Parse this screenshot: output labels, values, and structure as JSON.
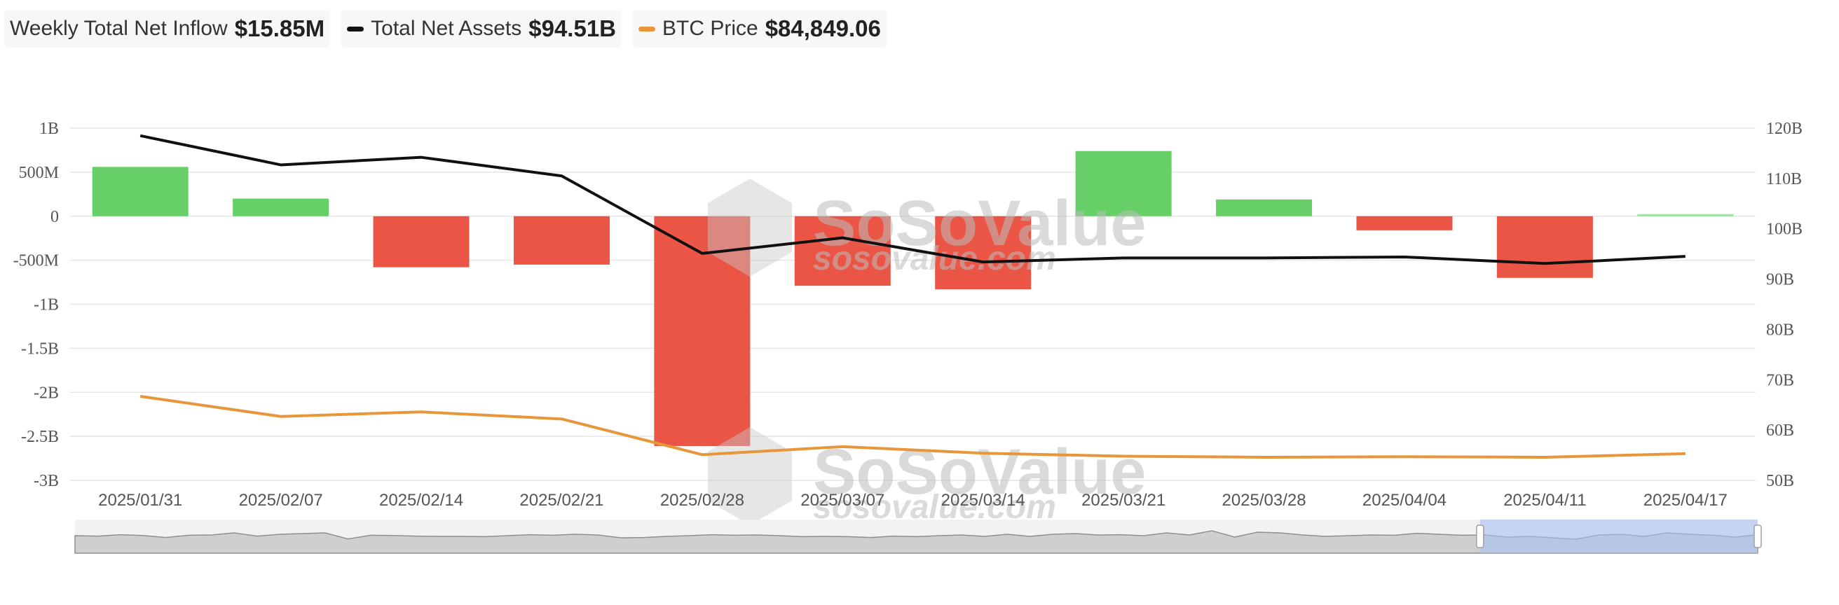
{
  "legend": {
    "inflow": {
      "label": "Weekly Total Net Inflow",
      "value": "$15.85M"
    },
    "assets": {
      "label": "Total Net Assets",
      "value": "$94.51B",
      "color": "#111111"
    },
    "btc": {
      "label": "BTC Price",
      "value": "$84,849.06",
      "color": "#e8963a"
    }
  },
  "watermark": {
    "brand": "SoSoValue",
    "url": "sosovalue.com"
  },
  "colors": {
    "positive": "#67cf68",
    "negative": "#eb5546",
    "assets_line": "#111111",
    "btc_line": "#e8963a",
    "grid": "#e6e6e6"
  },
  "chart_data": {
    "type": "bar",
    "categories": [
      "2025/01/31",
      "2025/02/07",
      "2025/02/14",
      "2025/02/21",
      "2025/02/28",
      "2025/03/07",
      "2025/03/14",
      "2025/03/21",
      "2025/03/28",
      "2025/04/04",
      "2025/04/11",
      "2025/04/17"
    ],
    "left_axis": {
      "ylim": [
        -3000000000,
        1000000000
      ],
      "ticks": [
        1000000000,
        500000000,
        0,
        -500000000,
        -1000000000,
        -1500000000,
        -2000000000,
        -2500000000,
        -3000000000
      ],
      "tick_labels": [
        "1B",
        "500M",
        "0",
        "-500M",
        "-1B",
        "-1.5B",
        "-2B",
        "-2.5B",
        "-3B"
      ]
    },
    "right_axis": {
      "ylim": [
        50000000000,
        120000000000
      ],
      "ticks": [
        120000000000,
        110000000000,
        100000000000,
        90000000000,
        80000000000,
        70000000000,
        60000000000,
        50000000000
      ],
      "tick_labels": [
        "120B",
        "110B",
        "100B",
        "90B",
        "80B",
        "70B",
        "60B",
        "50B"
      ]
    },
    "series": [
      {
        "name": "Weekly Total Net Inflow",
        "type": "bar",
        "axis": "left",
        "values": [
          560000000,
          200000000,
          -580000000,
          -550000000,
          -2610000000,
          -790000000,
          -830000000,
          740000000,
          190000000,
          -160000000,
          -700000000,
          15850000.0
        ]
      },
      {
        "name": "Total Net Assets",
        "type": "line",
        "axis": "right",
        "values": [
          118500000000,
          112700000000,
          114200000000,
          110500000000,
          95100000000,
          98200000000,
          93400000000,
          94200000000,
          94200000000,
          94400000000,
          93100000000,
          94510000000
        ]
      },
      {
        "name": "BTC Price",
        "type": "line",
        "axis": "right",
        "values": [
          66700000000,
          62700000000,
          63600000000,
          62200000000,
          55100000000,
          56700000000,
          55400000000,
          54800000000,
          54600000000,
          54700000000,
          54600000000,
          55300000000
        ]
      }
    ],
    "overview_series": [
      0.35,
      0.32,
      0.42,
      0.36,
      0.22,
      0.38,
      0.4,
      0.55,
      0.32,
      0.45,
      0.5,
      0.55,
      0.12,
      0.38,
      0.36,
      0.32,
      0.3,
      0.3,
      0.28,
      0.35,
      0.42,
      0.38,
      0.45,
      0.4,
      0.2,
      0.22,
      0.3,
      0.35,
      0.42,
      0.38,
      0.4,
      0.35,
      0.28,
      0.3,
      0.28,
      0.22,
      0.32,
      0.28,
      0.35,
      0.4,
      0.3,
      0.45,
      0.3,
      0.45,
      0.5,
      0.4,
      0.42,
      0.35,
      0.55,
      0.4,
      0.7,
      0.25,
      0.6,
      0.55,
      0.4,
      0.3,
      0.35,
      0.4,
      0.38,
      0.52,
      0.45,
      0.38,
      0.4,
      0.25,
      0.3,
      0.2,
      0.1,
      0.4,
      0.45,
      0.3,
      0.55,
      0.45,
      0.38,
      0.25,
      0.42
    ],
    "overview_selection": [
      0.835,
      1.0
    ],
    "grid": true,
    "legend_position": "top-left"
  }
}
